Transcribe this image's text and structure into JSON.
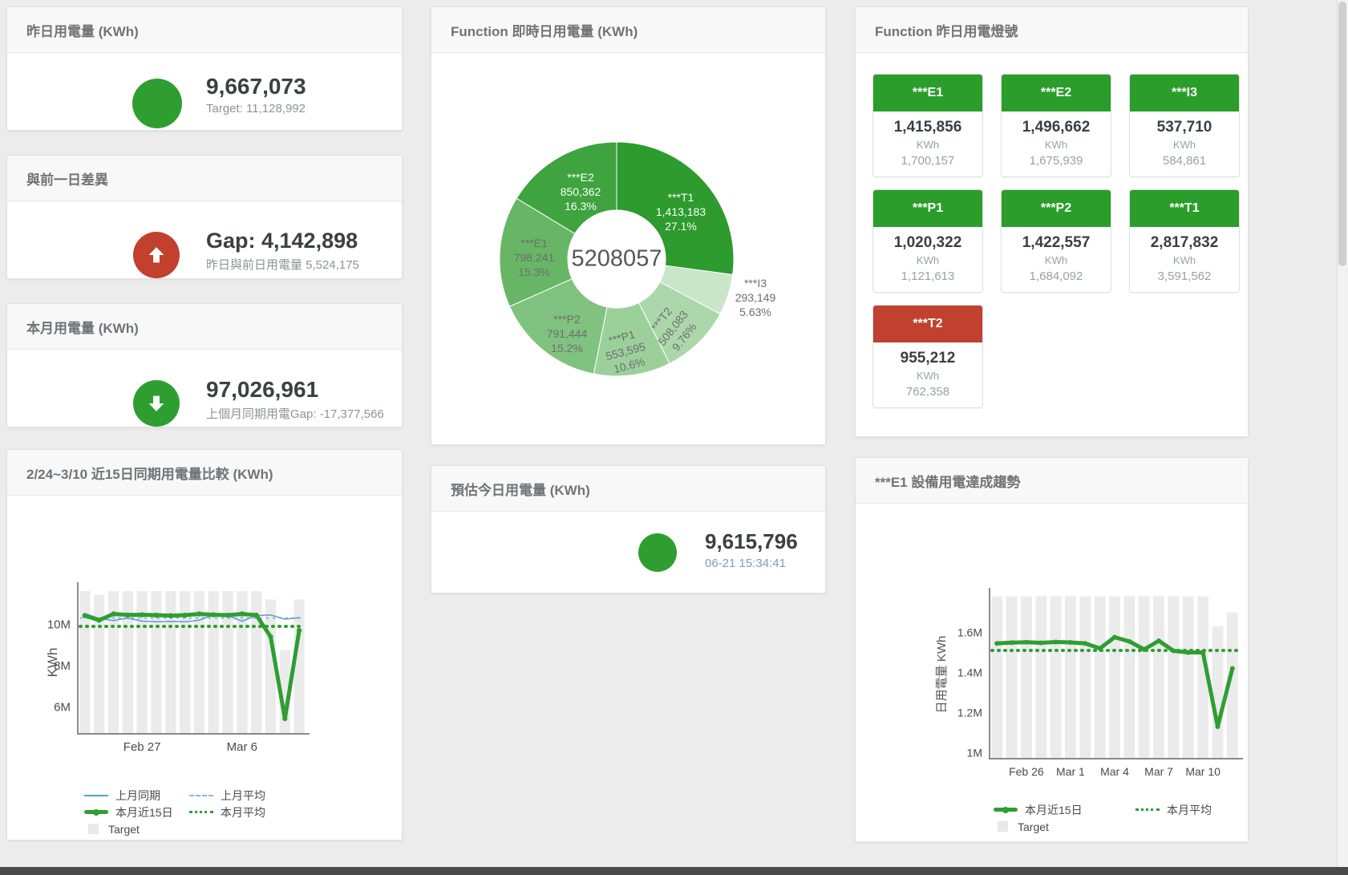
{
  "cards": {
    "yesterday": {
      "title": "昨日用電量 (KWh)",
      "value": "9,667,073",
      "subtitle": "Target: 11,128,992"
    },
    "diff": {
      "title": "與前一日差異",
      "value": "Gap: 4,142,898",
      "subtitle": "昨日與前日用電量 5,524,175"
    },
    "month": {
      "title": "本月用電量 (KWh)",
      "value": "97,026,961",
      "subtitle": "上個月同期用電Gap: -17,377,566"
    },
    "estimate": {
      "title": "預估今日用電量 (KWh)",
      "value": "9,615,796",
      "timestamp": "06-21 15:34:41"
    },
    "lights": {
      "title": "Function 昨日用電燈號",
      "tiles": [
        {
          "label": "***E1",
          "value": "1,415,856",
          "unit": "KWh",
          "prev": "1,700,157",
          "status": "green"
        },
        {
          "label": "***E2",
          "value": "1,496,662",
          "unit": "KWh",
          "prev": "1,675,939",
          "status": "green"
        },
        {
          "label": "***I3",
          "value": "537,710",
          "unit": "KWh",
          "prev": "584,861",
          "status": "green"
        },
        {
          "label": "***P1",
          "value": "1,020,322",
          "unit": "KWh",
          "prev": "1,121,613",
          "status": "green"
        },
        {
          "label": "***P2",
          "value": "1,422,557",
          "unit": "KWh",
          "prev": "1,684,092",
          "status": "green"
        },
        {
          "label": "***T1",
          "value": "2,817,832",
          "unit": "KWh",
          "prev": "3,591,562",
          "status": "green"
        },
        {
          "label": "***T2",
          "value": "955,212",
          "unit": "KWh",
          "prev": "762,358",
          "status": "red"
        }
      ]
    }
  },
  "colors": {
    "green": "#2f9e31",
    "red": "#c1402e",
    "tile_green": "#2a9d2a",
    "tile_red": "#c1402e",
    "blue_line": "#5b9bd5",
    "blue_dashed": "#8ab6e0",
    "target_bar": "#ebebeb"
  },
  "chart_data": [
    {
      "type": "pie",
      "title": "Function 即時日用電量 (KWh)",
      "center_total": "5208057",
      "slices": [
        {
          "label": "***T1",
          "value": "1,413,183",
          "pct": "27.1%",
          "pct_num": 27.1,
          "color": "#2d9b2d"
        },
        {
          "label": "***I3",
          "value": "293,149",
          "pct": "5.63%",
          "pct_num": 5.63,
          "color": "#c9e6c9"
        },
        {
          "label": "***T2",
          "value": "508,083",
          "pct": "9.76%",
          "pct_num": 9.76,
          "color": "#abd7ab"
        },
        {
          "label": "***P1",
          "value": "553,595",
          "pct": "10.6%",
          "pct_num": 10.6,
          "color": "#9bd09b"
        },
        {
          "label": "***P2",
          "value": "791,444",
          "pct": "15.2%",
          "pct_num": 15.2,
          "color": "#80c280"
        },
        {
          "label": "***E1",
          "value": "798,241",
          "pct": "15.3%",
          "pct_num": 15.3,
          "color": "#66b666"
        },
        {
          "label": "***E2",
          "value": "850,362",
          "pct": "16.3%",
          "pct_num": 16.3,
          "color": "#3fa33f"
        }
      ]
    },
    {
      "type": "line+bar",
      "title": "2/24~3/10 近15日同期用電量比較 (KWh)",
      "ylabel": "KWh",
      "unit_note": "values in millions of KWh",
      "ylim": [
        4.71,
        11.72
      ],
      "grid": false,
      "legend_position": "bottom-left",
      "yticks": [
        {
          "v": 6,
          "label": "6M"
        },
        {
          "v": 8,
          "label": "8M"
        },
        {
          "v": 10,
          "label": "10M"
        }
      ],
      "xticks": [
        {
          "i": 4,
          "label": "Feb 27"
        },
        {
          "i": 11,
          "label": "Mar 6"
        }
      ],
      "target_bars": {
        "label": "Target",
        "color": "#ebebeb",
        "values": [
          11.6,
          11.42,
          11.6,
          11.6,
          11.6,
          11.6,
          11.6,
          11.6,
          11.6,
          11.6,
          11.6,
          11.6,
          11.6,
          11.2,
          8.75,
          11.2
        ]
      },
      "series": [
        {
          "name": "上月同期",
          "kind": "line",
          "color": "#5b9bd5",
          "width": 1.5,
          "values": [
            10.52,
            10.28,
            10.18,
            10.3,
            10.15,
            10.12,
            10.14,
            10.12,
            10.2,
            10.45,
            10.42,
            10.15,
            10.42,
            10.45,
            10.25,
            10.32
          ]
        },
        {
          "name": "上月平均",
          "kind": "avg",
          "color": "#8ab6e0",
          "width": 2,
          "dash": "3 5",
          "value": 10.3
        },
        {
          "name": "本月近15日",
          "kind": "line",
          "color": "#2f9e31",
          "width": 5,
          "dots": 3.2,
          "values": [
            10.42,
            10.2,
            10.5,
            10.45,
            10.46,
            10.44,
            10.42,
            10.44,
            10.5,
            10.46,
            10.44,
            10.5,
            10.44,
            9.4,
            5.45,
            9.7
          ]
        },
        {
          "name": "本月平均",
          "kind": "avg",
          "color": "#2f9e31",
          "width": 4,
          "dash": "1 7",
          "cap": "round",
          "value": 9.9
        }
      ]
    },
    {
      "type": "line+bar",
      "title": "***E1 設備用電達成趨勢",
      "ylabel": "日用電量 KWh",
      "unit_note": "values in millions of KWh",
      "ylim": [
        0.97,
        1.79
      ],
      "grid": false,
      "legend_position": "bottom-left",
      "yticks": [
        {
          "v": 1,
          "label": "1M"
        },
        {
          "v": 1.2,
          "label": "1.2M"
        },
        {
          "v": 1.4,
          "label": "1.4M"
        },
        {
          "v": 1.6,
          "label": "1.6M"
        }
      ],
      "xticks": [
        {
          "i": 2,
          "label": "Feb 26"
        },
        {
          "i": 5,
          "label": "Mar 1"
        },
        {
          "i": 8,
          "label": "Mar 4"
        },
        {
          "i": 11,
          "label": "Mar 7"
        },
        {
          "i": 14,
          "label": "Mar 10"
        }
      ],
      "target_bars": {
        "label": "Target",
        "color": "#ebebeb",
        "values": [
          1.78,
          1.78,
          1.78,
          1.78,
          1.78,
          1.78,
          1.78,
          1.78,
          1.78,
          1.78,
          1.78,
          1.78,
          1.78,
          1.78,
          1.78,
          1.63,
          1.7
        ]
      },
      "series": [
        {
          "name": "本月近15日",
          "kind": "line",
          "color": "#2f9e31",
          "width": 5,
          "dots": 3,
          "values": [
            1.545,
            1.549,
            1.551,
            1.548,
            1.552,
            1.55,
            1.545,
            1.52,
            1.576,
            1.555,
            1.515,
            1.558,
            1.508,
            1.5,
            1.5,
            1.13,
            1.42
          ]
        },
        {
          "name": "本月平均",
          "kind": "avg",
          "color": "#2f9e31",
          "width": 4,
          "dash": "1 7",
          "cap": "round",
          "value": 1.51
        }
      ]
    }
  ]
}
